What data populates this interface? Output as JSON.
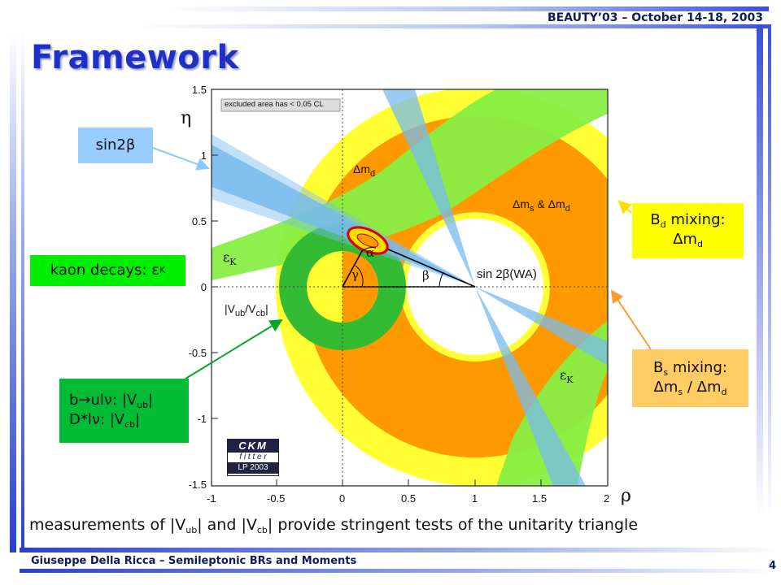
{
  "header": {
    "title": "BEAUTY’03 – October 14-18, 2003"
  },
  "slide": {
    "title": "Framework",
    "page": "4"
  },
  "footer": {
    "text": "Giuseppe Della Ricca – Semileptonic BRs and Moments"
  },
  "labels": {
    "sin2b": "sin2β",
    "kaon": "kaon decays: ε",
    "kaon_sub": "K",
    "bd_line1": "B",
    "bd_sub": "d",
    "bd_suffix": " mixing:",
    "bd_line2": "Δm",
    "bd_line2_sub": "d",
    "bs_line1": "B",
    "bs_sub": "s",
    "bs_suffix": " mixing:",
    "bs_line2a": "Δm",
    "bs_line2a_sub": "s",
    "bs_line2_mid": " / Δm",
    "bs_line2b_sub": "d",
    "vub_line": "b→ulν: |V",
    "vub_sub": "ub",
    "vub_end": "|",
    "vcb_line": "D*lν: |V",
    "vcb_sub": "cb",
    "vcb_end": "|"
  },
  "plot": {
    "eta": "η",
    "rho": "ρ",
    "legend": "excluded area has < 0.05 CL",
    "dmd": "Δm",
    "dmd_sub": "d",
    "dms_dmd": "Δm",
    "dms_sub": "s",
    "amp": " & Δm",
    "dms_dmd_sub": "d",
    "epsk1": "ε",
    "epsk1_sub": "K",
    "epsk2": "ε",
    "epsk2_sub": "K",
    "vubvcb": "|V",
    "vubvcb_sub1": "ub",
    "vubvcb_mid": "/V",
    "vubvcb_sub2": "cb",
    "vubvcb_end": "|",
    "alpha": "α",
    "beta": "β",
    "gamma": "γ",
    "sin2bwa": "sin 2β(WA)",
    "logo_line1": "CKM",
    "logo_line2": "f i t t e r",
    "logo_line3": "LP 2003",
    "x_ticks": [
      "-1",
      "-0.5",
      "0",
      "0.5",
      "1",
      "1.5",
      "2"
    ],
    "y_ticks": [
      "1.5",
      "1",
      "0.5",
      "0",
      "-0.5",
      "-1",
      "-1.5"
    ]
  },
  "measurement": {
    "text_a": "measurements of |V",
    "sub_a": "ub",
    "text_b": "| and |V",
    "sub_b": "cb",
    "text_c": "| provide stringent tests of the unitarity triangle"
  },
  "colors": {
    "title_blue": "#1f30c8",
    "box_sin2b": "#99ccff",
    "box_kaon": "#00ee00",
    "box_vub": "#00bb33",
    "box_bd": "#ffff00",
    "box_bs": "#ffcc66",
    "ring_yellow": "#ffff33",
    "ring_orange": "#ff9900",
    "band_green": "#88ee44",
    "band_blue": "#77bbee",
    "circle_green": "#33bb33"
  }
}
